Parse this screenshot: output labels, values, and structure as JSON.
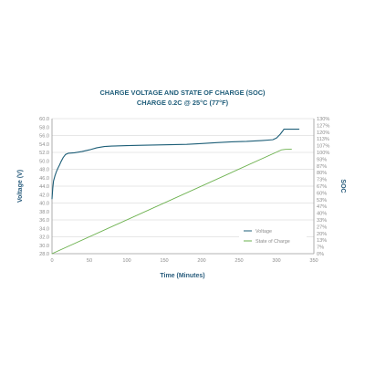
{
  "chart_data": {
    "type": "line",
    "title": "CHARGE VOLTAGE AND STATE OF CHARGE (SOC)",
    "subtitle": "CHARGE 0.2C @ 25°C (77°F)",
    "xlabel": "Time (Minutes)",
    "ylabel": "Voltage (V)",
    "ylabel_right": "SOC",
    "xlim": [
      0,
      350
    ],
    "ylim": [
      28,
      60
    ],
    "ylim_right": [
      0,
      130
    ],
    "x_ticks": [
      "0",
      "50",
      "100",
      "150",
      "200",
      "250",
      "300",
      "350"
    ],
    "y_ticks": [
      "28.0",
      "30.0",
      "32.0",
      "34.0",
      "36.0",
      "38.0",
      "40.0",
      "42.0",
      "44.0",
      "46.0",
      "48.0",
      "50.0",
      "52.0",
      "54.0",
      "56.0",
      "58.0",
      "60.0"
    ],
    "y_ticks_right": [
      "0%",
      "7%",
      "13%",
      "20%",
      "27%",
      "33%",
      "40%",
      "47%",
      "53%",
      "60%",
      "67%",
      "73%",
      "80%",
      "87%",
      "93%",
      "100%",
      "107%",
      "113%",
      "120%",
      "127%",
      "130%"
    ],
    "grid": true,
    "legend_position": "bottom-right",
    "series": [
      {
        "name": "Voltage",
        "axis": "left",
        "color": "#1e5f78",
        "x": [
          0,
          1,
          2,
          4,
          6,
          8,
          10,
          12,
          15,
          18,
          22,
          30,
          40,
          50,
          60,
          70,
          80,
          100,
          120,
          150,
          180,
          200,
          220,
          240,
          260,
          280,
          295,
          300,
          305,
          308,
          310,
          312,
          320,
          330
        ],
        "y": [
          41.0,
          43.5,
          45.2,
          46.5,
          47.5,
          48.3,
          49.0,
          49.8,
          50.8,
          51.5,
          51.8,
          51.9,
          52.2,
          52.6,
          53.1,
          53.4,
          53.5,
          53.6,
          53.7,
          53.8,
          53.9,
          54.1,
          54.3,
          54.5,
          54.6,
          54.8,
          55.0,
          55.4,
          56.3,
          57.0,
          57.5,
          57.5,
          57.5,
          57.5
        ]
      },
      {
        "name": "State of Charge",
        "axis": "right",
        "color": "#6ab04c",
        "x": [
          0,
          307,
          312,
          320
        ],
        "y": [
          0,
          100,
          100.4,
          100.5
        ]
      }
    ]
  }
}
